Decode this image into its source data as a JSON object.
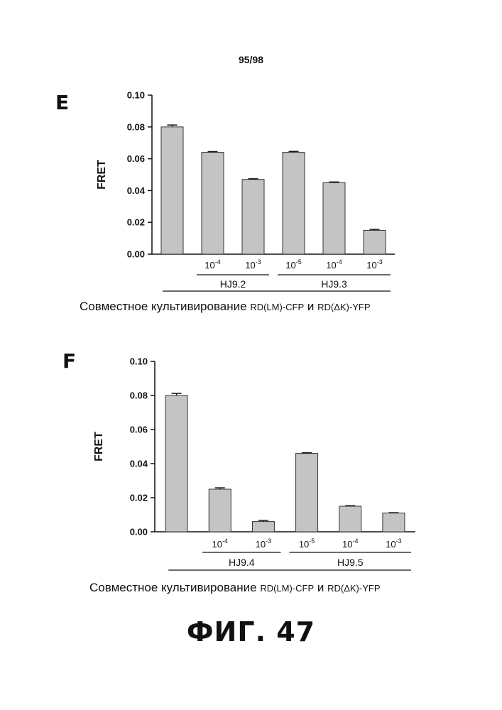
{
  "page_number": "95/98",
  "figure_label": "ФИГ. 47",
  "chart_data": [
    {
      "panel": "E",
      "type": "bar",
      "ylabel": "FRET",
      "ylim": [
        0,
        0.1
      ],
      "yticks": [
        "0.00",
        "0.02",
        "0.04",
        "0.06",
        "0.08",
        "0.10"
      ],
      "categories": [
        "",
        "10-4",
        "10-3",
        "10-5",
        "10-4",
        "10-3"
      ],
      "category_labels": [
        {
          "base": "",
          "exp": ""
        },
        {
          "base": "10",
          "exp": "-4"
        },
        {
          "base": "10",
          "exp": "-3"
        },
        {
          "base": "10",
          "exp": "-5"
        },
        {
          "base": "10",
          "exp": "-4"
        },
        {
          "base": "10",
          "exp": "-3"
        }
      ],
      "values": [
        0.08,
        0.064,
        0.047,
        0.064,
        0.045,
        0.015
      ],
      "errors": [
        0.0012,
        0.0005,
        0.0004,
        0.0006,
        0.0004,
        0.0006
      ],
      "groups": [
        {
          "label": "HJ9.2",
          "from": 1,
          "to": 2
        },
        {
          "label": "HJ9.3",
          "from": 3,
          "to": 5
        }
      ],
      "caption": {
        "main": "Совместное культивирование ",
        "a": "RD(LM)-CFP",
        "mid": " и ",
        "b": "RD(ΔK)-YFP"
      },
      "bar_color": "#c4c4c4"
    },
    {
      "panel": "F",
      "type": "bar",
      "ylabel": "FRET",
      "ylim": [
        0,
        0.1
      ],
      "yticks": [
        "0.00",
        "0.02",
        "0.04",
        "0.06",
        "0.08",
        "0.10"
      ],
      "categories": [
        "",
        "10-4",
        "10-3",
        "10-5",
        "10-4",
        "10-3"
      ],
      "category_labels": [
        {
          "base": "",
          "exp": ""
        },
        {
          "base": "10",
          "exp": "-4"
        },
        {
          "base": "10",
          "exp": "-3"
        },
        {
          "base": "10",
          "exp": "-5"
        },
        {
          "base": "10",
          "exp": "-4"
        },
        {
          "base": "10",
          "exp": "-3"
        }
      ],
      "values": [
        0.08,
        0.025,
        0.006,
        0.046,
        0.015,
        0.011
      ],
      "errors": [
        0.0012,
        0.0008,
        0.0007,
        0.0004,
        0.0003,
        0.0002
      ],
      "groups": [
        {
          "label": "HJ9.4",
          "from": 1,
          "to": 2
        },
        {
          "label": "HJ9.5",
          "from": 3,
          "to": 5
        }
      ],
      "caption": {
        "main": "Совместное культивирование ",
        "a": "RD(LM)-CFP",
        "mid": " и ",
        "b": "RD(ΔK)-YFP"
      },
      "bar_color": "#c4c4c4"
    }
  ]
}
